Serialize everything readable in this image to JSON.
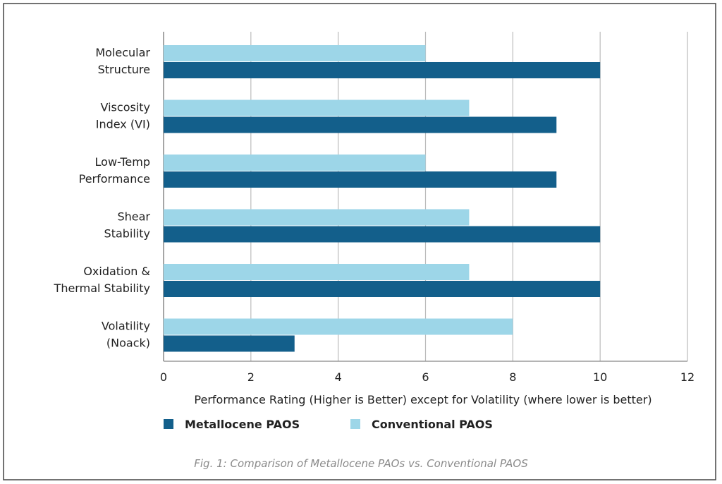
{
  "chart_data": {
    "type": "bar",
    "orientation": "horizontal",
    "categories": [
      [
        "Molecular",
        "Structure"
      ],
      [
        "Viscosity",
        "Index (VI)"
      ],
      [
        "Low-Temp",
        "Performance"
      ],
      [
        "Shear",
        "Stability"
      ],
      [
        "Oxidation &",
        "Thermal Stability"
      ],
      [
        "Volatility",
        "(Noack)"
      ]
    ],
    "series": [
      {
        "name": "Conventional PAOS",
        "color": "#9dd6e8",
        "values": [
          6,
          7,
          6,
          7,
          7,
          8
        ]
      },
      {
        "name": "Metallocene PAOS",
        "color": "#135f8b",
        "values": [
          10,
          9,
          9,
          10,
          10,
          3
        ]
      }
    ],
    "xlabel": "Performance Rating (Higher is Better) except for Volatility (where lower is better)",
    "xlim": [
      0,
      12
    ],
    "xticks": [
      "0",
      "2",
      "4",
      "6",
      "8",
      "10",
      "12"
    ],
    "grid": "vertical",
    "legend_placement": "bottom-left",
    "legend": [
      "Metallocene PAOS",
      "Conventional PAOS"
    ],
    "caption": "Fig. 1: Comparison of Metallocene PAOs vs. Conventional PAOS"
  }
}
